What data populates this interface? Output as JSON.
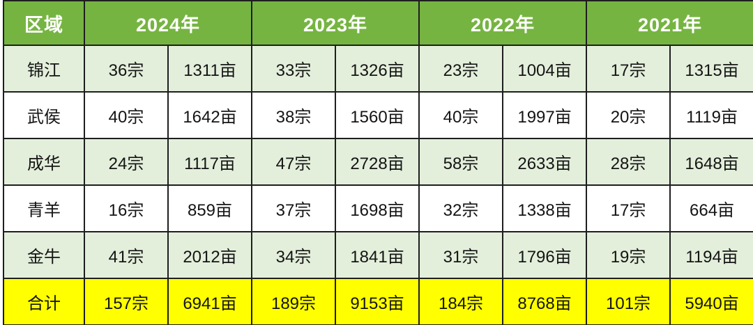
{
  "table": {
    "region_header": "区域",
    "year_headers": [
      "2024年",
      "2023年",
      "2022年",
      "2021年"
    ],
    "rows": [
      {
        "region": "锦江",
        "values": [
          "36宗",
          "1311亩",
          "33宗",
          "1326亩",
          "23宗",
          "1004亩",
          "17宗",
          "1315亩"
        ]
      },
      {
        "region": "武侯",
        "values": [
          "40宗",
          "1642亩",
          "38宗",
          "1560亩",
          "40宗",
          "1997亩",
          "20宗",
          "1119亩"
        ]
      },
      {
        "region": "成华",
        "values": [
          "24宗",
          "1117亩",
          "47宗",
          "2728亩",
          "58宗",
          "2633亩",
          "28宗",
          "1648亩"
        ]
      },
      {
        "region": "青羊",
        "values": [
          "16宗",
          "859亩",
          "37宗",
          "1698亩",
          "32宗",
          "1338亩",
          "17宗",
          "664亩"
        ]
      },
      {
        "region": "金牛",
        "values": [
          "41宗",
          "2012亩",
          "34宗",
          "1841亩",
          "31宗",
          "1796亩",
          "19宗",
          "1194亩"
        ]
      }
    ],
    "total_row": {
      "region": "合计",
      "values": [
        "157宗",
        "6941亩",
        "189宗",
        "9153亩",
        "184宗",
        "8768亩",
        "101宗",
        "5940亩"
      ]
    }
  },
  "chart_data": {
    "type": "table",
    "title": "",
    "regions": [
      "锦江",
      "武侯",
      "成华",
      "青羊",
      "金牛",
      "合计"
    ],
    "years": [
      "2024年",
      "2023年",
      "2022年",
      "2021年"
    ],
    "unit_labels": [
      "宗",
      "亩"
    ],
    "series": [
      {
        "year": "2024年",
        "plots": [
          36,
          40,
          24,
          16,
          41,
          157
        ],
        "area_mu": [
          1311,
          1642,
          1117,
          859,
          2012,
          6941
        ]
      },
      {
        "year": "2023年",
        "plots": [
          33,
          38,
          47,
          37,
          34,
          189
        ],
        "area_mu": [
          1326,
          1560,
          2728,
          1698,
          1841,
          9153
        ]
      },
      {
        "year": "2022年",
        "plots": [
          23,
          40,
          58,
          32,
          31,
          184
        ],
        "area_mu": [
          1004,
          1997,
          2633,
          1338,
          1796,
          8768
        ]
      },
      {
        "year": "2021年",
        "plots": [
          17,
          20,
          28,
          17,
          19,
          101
        ],
        "area_mu": [
          1315,
          1119,
          1648,
          664,
          1194,
          5940
        ]
      }
    ]
  },
  "colors": {
    "header_bg": "#76b442",
    "header_text": "#ffffff",
    "row_alt_bg": "#e3efdb",
    "row_plain_bg": "#ffffff",
    "total_row_bg": "#ffff00",
    "border": "#1e1e1e",
    "cell_text": "#141414"
  }
}
